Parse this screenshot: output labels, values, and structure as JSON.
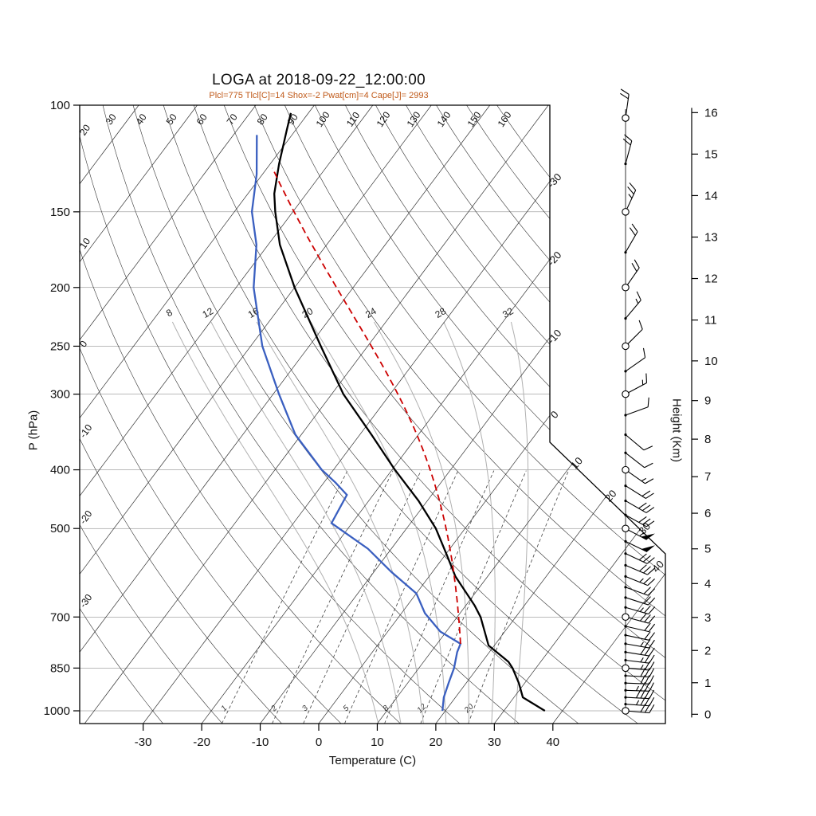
{
  "header": {
    "title": "LOGA at 2018-09-22_12:00:00",
    "subtitle": "Plcl=775 Tlcl[C]=14 Shox=-2 Pwat[cm]=4 Cape[J]= 2993"
  },
  "colors": {
    "temperature_line": "#000000",
    "dewpoint_line": "#3a5fc0",
    "parcel_line": "#cc0000",
    "subtitle_text": "#c05a1a",
    "moist_adiabat": "#b0b0b0",
    "grid_line": "#333333",
    "isobar_line": "#777777",
    "mixing_line": "#444444",
    "frame": "#000000",
    "wind": "#000000"
  },
  "chart_data": {
    "type": "skewt-logp-sounding",
    "station": "LOGA",
    "timestamp": "2018-09-22_12:00:00",
    "indices": {
      "Plcl": 775,
      "Tlcl_C": 14,
      "Shox": -2,
      "Pwat_cm": 4,
      "Cape_J": 2993
    },
    "axes": {
      "pressure": {
        "label": "P (hPa)",
        "ticks": [
          100,
          150,
          200,
          250,
          300,
          400,
          500,
          700,
          850,
          1000
        ],
        "range": [
          100,
          1050
        ],
        "scale": "log"
      },
      "temperature": {
        "label": "Temperature (C)",
        "ticks": [
          -30,
          -20,
          -10,
          0,
          10,
          20,
          30,
          40
        ]
      },
      "height_km": {
        "label": "Height (Km)",
        "ticks": [
          0,
          1,
          2,
          3,
          4,
          5,
          6,
          7,
          8,
          9,
          10,
          11,
          12,
          13,
          14,
          15,
          16
        ]
      }
    },
    "background_lines": {
      "isotherms_c": [
        -120,
        -110,
        -100,
        -90,
        -80,
        -70,
        -60,
        -50,
        -40,
        -30,
        -20,
        -10,
        0,
        10,
        20,
        30,
        40
      ],
      "isotherm_edge_labels": [
        -30,
        -20,
        -10,
        0,
        10,
        20,
        30,
        40
      ],
      "dry_adiabats_c": [
        -30,
        -20,
        -10,
        0,
        10,
        20,
        30,
        40,
        50,
        60,
        70,
        80,
        90,
        100,
        110,
        120,
        130,
        140,
        150,
        160
      ],
      "moist_adiabats_c": [
        8,
        12,
        16,
        20,
        24,
        28,
        32
      ],
      "mixing_ratio_gkg": [
        1,
        2,
        3,
        5,
        8,
        12,
        20
      ]
    },
    "series": {
      "temperature": [
        [
          1000,
          37
        ],
        [
          950,
          31.5
        ],
        [
          900,
          29
        ],
        [
          850,
          26
        ],
        [
          830,
          24.5
        ],
        [
          780,
          19
        ],
        [
          700,
          14
        ],
        [
          670,
          11.5
        ],
        [
          600,
          4.5
        ],
        [
          550,
          0
        ],
        [
          500,
          -5
        ],
        [
          450,
          -11.5
        ],
        [
          400,
          -19.5
        ],
        [
          350,
          -28
        ],
        [
          300,
          -38
        ],
        [
          250,
          -48
        ],
        [
          200,
          -60
        ],
        [
          170,
          -68
        ],
        [
          150,
          -73
        ],
        [
          140,
          -75.5
        ],
        [
          125,
          -78.5
        ],
        [
          110,
          -81.5
        ],
        [
          103,
          -83
        ]
      ],
      "dewpoint": [
        [
          1000,
          19.5
        ],
        [
          950,
          18
        ],
        [
          900,
          17
        ],
        [
          850,
          16
        ],
        [
          800,
          14.5
        ],
        [
          775,
          14
        ],
        [
          740,
          9
        ],
        [
          690,
          4
        ],
        [
          640,
          0
        ],
        [
          590,
          -7
        ],
        [
          540,
          -14
        ],
        [
          490,
          -23.5
        ],
        [
          440,
          -24.5
        ],
        [
          420,
          -28
        ],
        [
          400,
          -32
        ],
        [
          350,
          -41
        ],
        [
          300,
          -49
        ],
        [
          250,
          -58
        ],
        [
          200,
          -67
        ],
        [
          170,
          -72
        ],
        [
          150,
          -77
        ],
        [
          130,
          -81
        ],
        [
          112,
          -86
        ]
      ],
      "parcel": {
        "start_p": 775,
        "start_t": 14,
        "top_p": 130
      }
    },
    "winds": [
      {
        "p": 1000,
        "mark": "circle",
        "angle": 95,
        "full": 3,
        "half": 0
      },
      {
        "p": 975,
        "mark": "dot",
        "angle": 94,
        "full": 3,
        "half": 1
      },
      {
        "p": 950,
        "mark": "dot",
        "angle": 93,
        "full": 4,
        "half": 0
      },
      {
        "p": 925,
        "mark": "dot",
        "angle": 92,
        "full": 3,
        "half": 1
      },
      {
        "p": 900,
        "mark": "dot",
        "angle": 92,
        "full": 3,
        "half": 0
      },
      {
        "p": 875,
        "mark": "dot",
        "angle": 93,
        "full": 3,
        "half": 0
      },
      {
        "p": 850,
        "mark": "circle",
        "angle": 95,
        "full": 2,
        "half": 1
      },
      {
        "p": 825,
        "mark": "dot",
        "angle": 97,
        "full": 2,
        "half": 1
      },
      {
        "p": 800,
        "mark": "dot",
        "angle": 99,
        "full": 3,
        "half": 0
      },
      {
        "p": 775,
        "mark": "dot",
        "angle": 100,
        "full": 2,
        "half": 1
      },
      {
        "p": 750,
        "mark": "dot",
        "angle": 102,
        "full": 2,
        "half": 0
      },
      {
        "p": 725,
        "mark": "dot",
        "angle": 103,
        "full": 2,
        "half": 0
      },
      {
        "p": 700,
        "mark": "circle",
        "angle": 105,
        "full": 3,
        "half": 0
      },
      {
        "p": 675,
        "mark": "dot",
        "angle": 106,
        "full": 2,
        "half": 1
      },
      {
        "p": 650,
        "mark": "dot",
        "angle": 108,
        "full": 2,
        "half": 0
      },
      {
        "p": 625,
        "mark": "dot",
        "angle": 110,
        "full": 2,
        "half": 0
      },
      {
        "p": 600,
        "mark": "dot",
        "angle": 112,
        "full": 2,
        "half": 1
      },
      {
        "p": 575,
        "mark": "dot",
        "angle": 113,
        "full": 3,
        "half": 0
      },
      {
        "p": 550,
        "mark": "dot",
        "angle": 115,
        "full": 3,
        "half": 0
      },
      {
        "p": 525,
        "mark": "dot",
        "angle": 116,
        "flag": 1,
        "full": 0,
        "half": 0
      },
      {
        "p": 500,
        "mark": "circle",
        "angle": 118,
        "flag": 1,
        "full": 0,
        "half": 1
      },
      {
        "p": 475,
        "mark": "dot",
        "angle": 119,
        "full": 3,
        "half": 0
      },
      {
        "p": 450,
        "mark": "dot",
        "angle": 120,
        "full": 3,
        "half": 0
      },
      {
        "p": 425,
        "mark": "dot",
        "angle": 122,
        "full": 2,
        "half": 0
      },
      {
        "p": 400,
        "mark": "circle",
        "angle": 125,
        "full": 1,
        "half": 1
      },
      {
        "p": 375,
        "mark": "dot",
        "angle": 128,
        "full": 1,
        "half": 0
      },
      {
        "p": 350,
        "mark": "dot",
        "angle": 130,
        "full": 1,
        "half": 0
      },
      {
        "p": 325,
        "mark": "dot",
        "angle": 70,
        "full": 1,
        "half": 0
      },
      {
        "p": 300,
        "mark": "circle",
        "angle": 62,
        "full": 1,
        "half": 1
      },
      {
        "p": 275,
        "mark": "dot",
        "angle": 55,
        "full": 1,
        "half": 0
      },
      {
        "p": 250,
        "mark": "circle",
        "angle": 45,
        "full": 1,
        "half": 0
      },
      {
        "p": 225,
        "mark": "dot",
        "angle": 40,
        "full": 1,
        "half": 1
      },
      {
        "p": 200,
        "mark": "circle",
        "angle": 35,
        "full": 2,
        "half": 0
      },
      {
        "p": 175,
        "mark": "dot",
        "angle": 30,
        "full": 2,
        "half": 0
      },
      {
        "p": 150,
        "mark": "circle",
        "angle": 25,
        "full": 2,
        "half": 1
      },
      {
        "p": 125,
        "mark": "dot",
        "angle": 15,
        "full": 2,
        "half": 0
      },
      {
        "p": 105,
        "mark": "circle",
        "angle": 8,
        "full": 2,
        "half": 0
      }
    ]
  }
}
